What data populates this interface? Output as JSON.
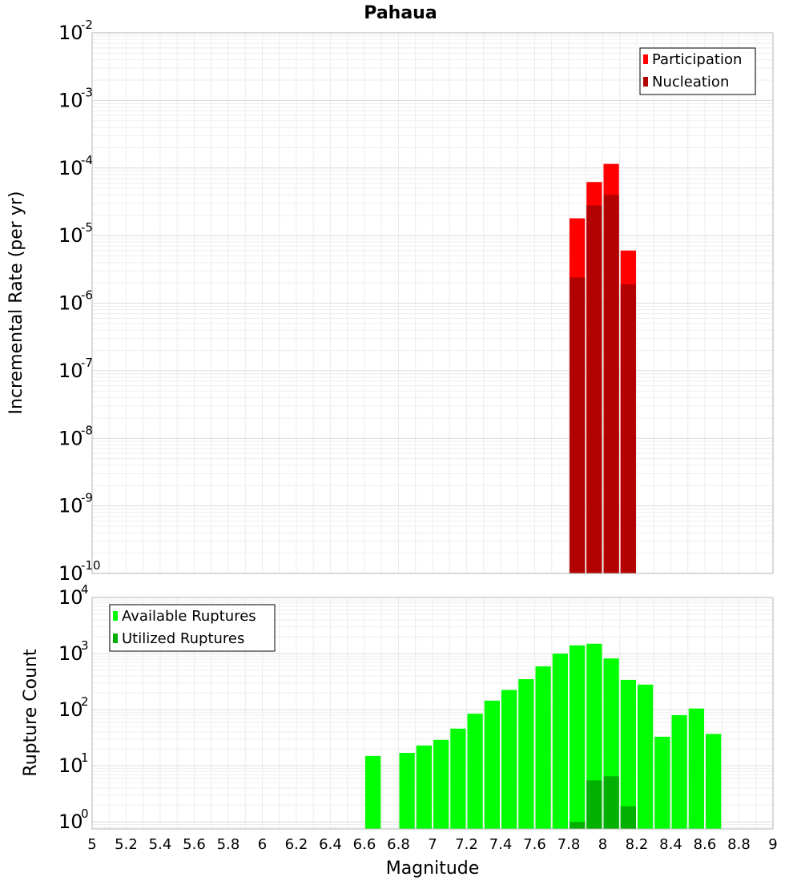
{
  "title": "Pahaua",
  "xlabel": "Magnitude",
  "chart_data": [
    {
      "type": "bar",
      "ylabel": "Incremental Rate (per yr)",
      "yscale": "log",
      "ylim": [
        1e-10,
        0.01
      ],
      "xlim": [
        5,
        9
      ],
      "grid": true,
      "legend_position": "top-right",
      "bar_width": 0.1,
      "y_tick_exponents": [
        "-10",
        "-9",
        "-8",
        "-7",
        "-6",
        "-5",
        "-4",
        "-3",
        "-2"
      ],
      "series": [
        {
          "name": "Participation",
          "color": "#ff0000",
          "x": [
            7.85,
            7.95,
            8.05,
            8.15
          ],
          "values": [
            1.8e-05,
            6.2e-05,
            0.000115,
            6e-06
          ]
        },
        {
          "name": "Nucleation",
          "color": "#b30000",
          "x": [
            7.85,
            7.95,
            8.05,
            8.15
          ],
          "values": [
            2.4e-06,
            2.8e-05,
            4e-05,
            1.9e-06
          ]
        }
      ]
    },
    {
      "type": "bar",
      "ylabel": "Rupture Count",
      "yscale": "log",
      "ylim": [
        0.75,
        10000
      ],
      "xlim": [
        5,
        9
      ],
      "grid": true,
      "legend_position": "top-left",
      "bar_width": 0.1,
      "y_tick_exponents": [
        "0",
        "1",
        "2",
        "3",
        "4"
      ],
      "x_tick_labels": [
        "5",
        "5.2",
        "5.4",
        "5.6",
        "5.8",
        "6",
        "6.2",
        "6.4",
        "6.6",
        "6.8",
        "7",
        "7.2",
        "7.4",
        "7.6",
        "7.8",
        "8",
        "8.2",
        "8.4",
        "8.6",
        "8.8",
        "9"
      ],
      "series": [
        {
          "name": "Available Ruptures",
          "color": "#00ff00",
          "x": [
            6.65,
            6.85,
            6.95,
            7.05,
            7.15,
            7.25,
            7.35,
            7.45,
            7.55,
            7.65,
            7.75,
            7.85,
            7.95,
            8.05,
            8.15,
            8.25,
            8.35,
            8.45,
            8.55,
            8.65
          ],
          "values": [
            15,
            17,
            23,
            29,
            46,
            85,
            145,
            225,
            350,
            590,
            1000,
            1400,
            1500,
            820,
            340,
            280,
            33,
            80,
            105,
            37
          ]
        },
        {
          "name": "Utilized Ruptures",
          "color": "#00b000",
          "x": [
            7.85,
            7.95,
            8.05,
            8.15
          ],
          "values": [
            1,
            5.5,
            6.5,
            1.9
          ]
        }
      ]
    }
  ]
}
